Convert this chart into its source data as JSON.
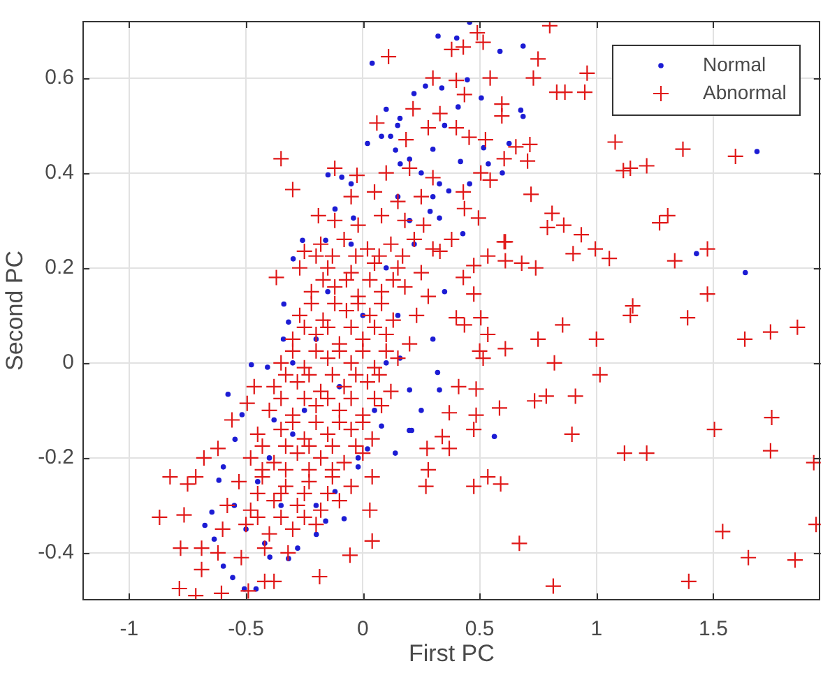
{
  "chart_data": {
    "type": "scatter",
    "xlabel": "First PC",
    "ylabel": "Second PC",
    "xlim": [
      -1.2,
      1.96
    ],
    "ylim": [
      -0.5,
      0.72
    ],
    "xticks": [
      -1,
      -0.5,
      0,
      0.5,
      1,
      1.5
    ],
    "yticks": [
      -0.4,
      -0.2,
      0,
      0.2,
      0.4,
      0.6
    ],
    "grid": true,
    "legend": "top right",
    "series": [
      {
        "name": "Normal",
        "color": "#1c1cd4",
        "marker": "circle",
        "x": [
          1.687,
          1.428,
          1.637,
          0.563,
          0.328,
          0.209,
          0.457,
          0.322,
          0.402,
          0.587,
          0.686,
          0.447,
          0.268,
          0.338,
          0.676,
          0.686,
          0.507,
          0.408,
          0.626,
          0.517,
          0.597,
          0.537,
          0.418,
          0.457,
          0.328,
          0.368,
          0.428,
          0.328,
          0.288,
          0.04,
          0.02,
          0.08,
          0.14,
          0.2,
          0.16,
          -0.149,
          -0.09,
          -0.05,
          -0.119,
          -0.04,
          -0.159,
          -0.258,
          -0.298,
          0.149,
          0.119,
          0.219,
          0.1,
          0.159,
          -0.338,
          -0.318,
          -0.577,
          -0.477,
          -0.408,
          -0.517,
          -0.547,
          -0.597,
          -0.616,
          -0.646,
          -0.676,
          -0.636,
          -0.597,
          -0.557,
          -0.507,
          -0.457,
          -0.398,
          -0.318,
          -0.279,
          -0.199,
          -0.159,
          -0.08,
          -0.119,
          -0.02,
          0.02,
          0.08,
          0.139,
          0.199,
          0.159,
          0.2,
          -0.3,
          -0.2,
          -0.35,
          -0.45,
          -0.1,
          0,
          -0.2,
          0.1,
          -0.3,
          -0.4,
          -0.25,
          -0.15,
          0.05,
          -0.05,
          0.2,
          0.25,
          0.3,
          0.35,
          0.3,
          0.15,
          0.22,
          -0.5,
          -0.55,
          -0.42,
          -0.38,
          -0.34,
          0.1,
          0.15,
          -0.02,
          0.35,
          0.3,
          0.25,
          0.32
        ],
        "values": [
          0.445,
          0.23,
          0.19,
          -0.155,
          -0.057,
          -0.142,
          0.717,
          0.688,
          0.684,
          0.656,
          0.667,
          0.596,
          0.583,
          0.579,
          0.532,
          0.519,
          0.558,
          0.539,
          0.462,
          0.453,
          0.4,
          0.419,
          0.424,
          0.377,
          0.377,
          0.362,
          0.272,
          0.305,
          0.319,
          0.631,
          0.462,
          0.477,
          0.448,
          0.429,
          0.419,
          0.396,
          0.391,
          0.377,
          0.324,
          0.305,
          0.258,
          0.258,
          0.219,
          0.5,
          0.477,
          0.567,
          0.534,
          0.515,
          0.124,
          0.086,
          -0.066,
          -0.004,
          -0.009,
          -0.109,
          -0.161,
          -0.219,
          -0.247,
          -0.314,
          -0.342,
          -0.371,
          -0.428,
          -0.452,
          -0.476,
          -0.476,
          -0.409,
          -0.412,
          -0.39,
          -0.361,
          -0.333,
          -0.328,
          -0.271,
          -0.219,
          -0.181,
          -0.133,
          -0.19,
          -0.142,
          0.01,
          -0.057,
          -0.15,
          -0.3,
          -0.3,
          -0.25,
          -0.05,
          0.1,
          0.05,
          0.2,
          0,
          -0.2,
          -0.1,
          0.15,
          -0.1,
          0.25,
          0.3,
          0.4,
          0.45,
          0.5,
          0.35,
          0.35,
          0.25,
          -0.35,
          -0.3,
          -0.38,
          -0.12,
          0.05,
          0,
          0.1,
          -0.2,
          0.15,
          0.05,
          -0.1,
          -0.02
        ]
      },
      {
        "name": "Abnormal",
        "color": "#e01818",
        "marker": "cross",
        "x": [
          0.8,
          0.75,
          0.96,
          0.73,
          0.83,
          0.865,
          0.95,
          1.08,
          1.37,
          1.595,
          1.115,
          1.145,
          1.215,
          0.72,
          0.81,
          0.79,
          0.86,
          0.935,
          1.305,
          1.27,
          0.995,
          1.055,
          0.9,
          1.475,
          1.335,
          0.61,
          0.61,
          0.68,
          0.74,
          1.475,
          1.155,
          1.145,
          1.39,
          0.855,
          1.86,
          1.745,
          1.635,
          1.0,
          0.75,
          0.61,
          0.515,
          0.5,
          0.82,
          1.015,
          0.41,
          0.485,
          0.37,
          0.485,
          0.585,
          0.735,
          0.785,
          0.91,
          0.895,
          0.475,
          0.34,
          0.37,
          0.275,
          1.12,
          1.215,
          1.505,
          1.75,
          1.745,
          1.93,
          1.94,
          1.54,
          1.65,
          1.85,
          1.395,
          0.815,
          0.67,
          0.28,
          0.27,
          0.535,
          0.475,
          0.59,
          -0.825,
          -0.75,
          -0.715,
          -0.87,
          -0.765,
          -0.78,
          -0.69,
          -0.69,
          -0.785,
          -0.715,
          -0.605,
          -0.49,
          -0.42,
          -0.38,
          -0.185,
          -0.055,
          0.04,
          0.03,
          0.04,
          -0.465,
          -0.495,
          0.11,
          -0.35,
          -0.3,
          -0.37,
          -0.12,
          -0.025,
          0.06,
          0.185,
          0.215,
          -0.19,
          -0.25,
          -0.2,
          -0.27,
          0.49,
          0.515,
          0.38,
          0.43,
          0.545,
          0.4,
          0.3,
          0.435,
          0.595,
          0.595,
          0.33,
          0.28,
          0.4,
          0.525,
          0.455,
          0.655,
          0.715,
          0.705,
          0.605,
          0.505,
          0.545,
          0.43,
          0.435,
          0.495,
          0.605,
          0.535,
          0.475,
          0.38,
          0.33,
          0.475,
          0.43,
          0.4,
          0.505,
          0.535,
          0.435,
          -0.68,
          -0.62,
          -0.56,
          0.1,
          0.2,
          0.3,
          -0.05,
          0.05,
          0.15,
          0.25,
          -0.12,
          -0.02,
          0.08,
          0.18,
          0.26,
          -0.18,
          -0.08,
          0.02,
          0.12,
          0.22,
          0.3,
          -0.15,
          -0.05,
          0.05,
          0.15,
          0.25,
          -0.22,
          -0.12,
          -0.02,
          0.08,
          0.18,
          0.28,
          -0.27,
          -0.17,
          -0.07,
          0.03,
          0.13,
          0.23,
          -0.3,
          -0.2,
          -0.1,
          0,
          0.1,
          0.2,
          -0.35,
          -0.25,
          -0.15,
          -0.05,
          0.05,
          0.15,
          -0.38,
          -0.28,
          -0.18,
          -0.08,
          0.02,
          0.12,
          -0.4,
          -0.3,
          -0.2,
          -0.1,
          0,
          0.08,
          -0.45,
          -0.35,
          -0.25,
          -0.15,
          -0.05,
          0.04,
          -0.48,
          -0.38,
          -0.28,
          -0.18,
          -0.08,
          0,
          -0.53,
          -0.43,
          -0.33,
          -0.23,
          -0.13,
          -0.05,
          -0.58,
          -0.48,
          -0.38,
          -0.28,
          -0.18,
          -0.1,
          -0.6,
          -0.5,
          -0.4,
          -0.3,
          -0.2,
          -0.62,
          -0.52,
          -0.42,
          -0.32,
          -0.13,
          -0.03,
          0.07,
          0.17,
          -0.17,
          -0.07,
          0.03,
          0.13,
          -0.22,
          -0.12,
          -0.02,
          0.08,
          -0.25,
          -0.15,
          -0.05,
          0.05,
          -0.3,
          -0.2,
          -0.1,
          0.0,
          0.1,
          -0.33,
          -0.23,
          -0.13,
          -0.03,
          0.07,
          -0.35,
          -0.25,
          -0.15,
          -0.05,
          0.05,
          -0.3,
          -0.2,
          -0.1,
          0.0,
          -0.43,
          -0.33,
          -0.23,
          -0.13,
          -0.03,
          -0.43,
          -0.33,
          -0.23,
          -0.13,
          -0.45,
          -0.35,
          -0.25,
          -0.15,
          -0.45,
          -0.35,
          -0.25
        ],
        "values": [
          0.71,
          0.64,
          0.61,
          0.6,
          0.57,
          0.57,
          0.57,
          0.465,
          0.45,
          0.435,
          0.405,
          0.41,
          0.415,
          0.355,
          0.315,
          0.285,
          0.29,
          0.27,
          0.31,
          0.295,
          0.24,
          0.22,
          0.23,
          0.24,
          0.215,
          0.255,
          0.215,
          0.21,
          0.2,
          0.145,
          0.12,
          0.1,
          0.095,
          0.08,
          0.075,
          0.065,
          0.05,
          0.05,
          0.05,
          0.03,
          0.01,
          0.025,
          0.0,
          -0.025,
          -0.05,
          -0.055,
          -0.105,
          -0.11,
          -0.095,
          -0.08,
          -0.07,
          -0.07,
          -0.15,
          -0.14,
          -0.155,
          -0.18,
          -0.18,
          -0.19,
          -0.19,
          -0.14,
          -0.115,
          -0.185,
          -0.21,
          -0.34,
          -0.355,
          -0.41,
          -0.415,
          -0.46,
          -0.47,
          -0.38,
          -0.225,
          -0.26,
          -0.24,
          -0.26,
          -0.255,
          -0.24,
          -0.255,
          -0.24,
          -0.325,
          -0.32,
          -0.39,
          -0.39,
          -0.435,
          -0.475,
          -0.49,
          -0.485,
          -0.48,
          -0.46,
          -0.46,
          -0.45,
          -0.405,
          -0.375,
          -0.31,
          -0.24,
          -0.05,
          -0.085,
          0.645,
          0.43,
          0.365,
          0.18,
          0.41,
          0.395,
          0.505,
          0.47,
          0.535,
          0.31,
          0.235,
          0.225,
          0.2,
          0.695,
          0.675,
          0.66,
          0.665,
          0.6,
          0.595,
          0.6,
          0.565,
          0.545,
          0.52,
          0.525,
          0.495,
          0.495,
          0.47,
          0.475,
          0.455,
          0.46,
          0.425,
          0.43,
          0.4,
          0.385,
          0.36,
          0.325,
          0.305,
          0.255,
          0.225,
          0.205,
          0.26,
          0.235,
          0.145,
          0.18,
          0.095,
          0.095,
          0.06,
          0.08,
          -0.2,
          -0.18,
          -0.12,
          0.4,
          0.41,
          0.39,
          0.35,
          0.36,
          0.34,
          0.35,
          0.3,
          0.29,
          0.31,
          0.3,
          0.29,
          0.25,
          0.26,
          0.24,
          0.25,
          0.26,
          0.24,
          0.2,
          0.19,
          0.21,
          0.2,
          0.19,
          0.15,
          0.16,
          0.14,
          0.15,
          0.16,
          0.14,
          0.1,
          0.09,
          0.11,
          0.1,
          0.09,
          0.1,
          0.05,
          0.06,
          0.04,
          0.05,
          0.06,
          0.04,
          0,
          -0.01,
          0.01,
          0,
          -0.01,
          0.01,
          -0.05,
          -0.04,
          -0.06,
          -0.05,
          -0.04,
          -0.06,
          -0.1,
          -0.11,
          -0.09,
          -0.1,
          -0.11,
          -0.09,
          -0.15,
          -0.14,
          -0.16,
          -0.15,
          -0.14,
          -0.16,
          -0.2,
          -0.21,
          -0.19,
          -0.2,
          -0.21,
          -0.19,
          -0.25,
          -0.24,
          -0.26,
          -0.25,
          -0.24,
          -0.26,
          -0.3,
          -0.31,
          -0.29,
          -0.3,
          -0.31,
          -0.29,
          -0.35,
          -0.34,
          -0.36,
          -0.35,
          -0.34,
          -0.4,
          -0.41,
          -0.39,
          -0.4,
          0.225,
          0.225,
          0.225,
          0.225,
          0.175,
          0.175,
          0.175,
          0.175,
          0.125,
          0.125,
          0.125,
          0.125,
          0.075,
          0.075,
          0.075,
          0.075,
          0.025,
          0.025,
          0.025,
          0.025,
          0.025,
          -0.025,
          -0.025,
          -0.025,
          -0.025,
          -0.025,
          -0.075,
          -0.075,
          -0.075,
          -0.075,
          -0.075,
          -0.125,
          -0.125,
          -0.125,
          -0.125,
          -0.175,
          -0.175,
          -0.175,
          -0.175,
          -0.175,
          -0.225,
          -0.225,
          -0.225,
          -0.225,
          -0.275,
          -0.275,
          -0.275,
          -0.275,
          -0.325,
          -0.325,
          -0.325
        ]
      }
    ]
  }
}
